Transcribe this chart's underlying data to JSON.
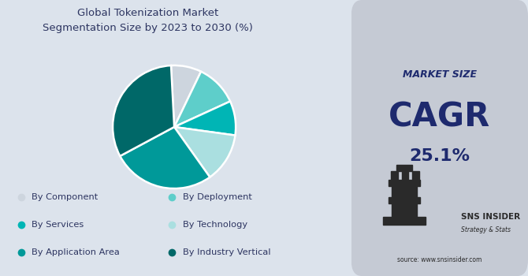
{
  "title": "Global Tokenization Market\nSegmentation Size by 2023 to 2030 (%)",
  "title_fontsize": 9.5,
  "title_color": "#2d3561",
  "bg_color_left": "#dce3ec",
  "bg_color_right": "#c5cad4",
  "pie_slices": [
    {
      "label": "By Component",
      "value": 8,
      "color": "#cdd5de"
    },
    {
      "label": "By Deployment",
      "value": 11,
      "color": "#5ececa"
    },
    {
      "label": "By Services",
      "value": 9,
      "color": "#00b5b5"
    },
    {
      "label": "By Technology",
      "value": 13,
      "color": "#aadfe0"
    },
    {
      "label": "By Application Area",
      "value": 27,
      "color": "#009999"
    },
    {
      "label": "By Industry Vertical",
      "value": 32,
      "color": "#006868"
    }
  ],
  "startangle": 93,
  "legend_labels_col1": [
    "By Component",
    "By Services",
    "By Application Area"
  ],
  "legend_labels_col2": [
    "By Deployment",
    "By Technology",
    "By Industry Vertical"
  ],
  "cagr_label": "MARKET SIZE",
  "cagr_value": "CAGR",
  "cagr_pct": "25.1%",
  "right_panel_text_color": "#1e2a6e",
  "source_text": "source: www.snsinsider.com"
}
